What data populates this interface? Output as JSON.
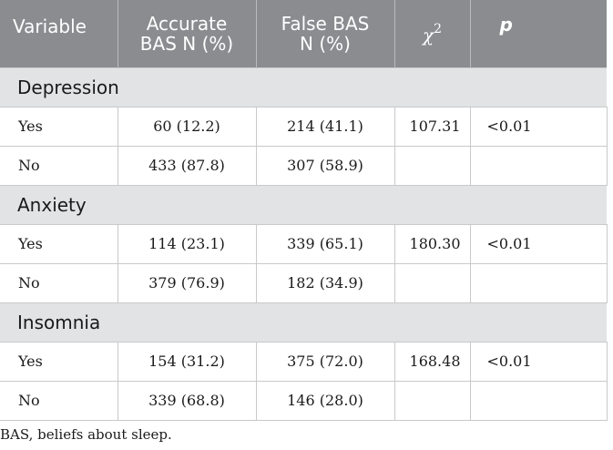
{
  "header": {
    "variable": "Variable",
    "accurate_line1": "Accurate",
    "accurate_line2": "BAS N (%)",
    "false_line1": "False BAS",
    "false_line2": "N (%)",
    "chi_symbol": "χ",
    "chi_exp": "2",
    "p": "p"
  },
  "sections": [
    {
      "name": "Depression",
      "rows": [
        {
          "label": "Yes",
          "accurate": "60 (12.2)",
          "false": "214 (41.1)",
          "chi2": "107.31",
          "p": "<0.01"
        },
        {
          "label": "No",
          "accurate": "433 (87.8)",
          "false": "307 (58.9)",
          "chi2": "",
          "p": ""
        }
      ]
    },
    {
      "name": "Anxiety",
      "rows": [
        {
          "label": "Yes",
          "accurate": "114 (23.1)",
          "false": "339 (65.1)",
          "chi2": "180.30",
          "p": "<0.01"
        },
        {
          "label": "No",
          "accurate": "379 (76.9)",
          "false": "182 (34.9)",
          "chi2": "",
          "p": ""
        }
      ]
    },
    {
      "name": "Insomnia",
      "rows": [
        {
          "label": "Yes",
          "accurate": "154 (31.2)",
          "false": "375 (72.0)",
          "chi2": "168.48",
          "p": "<0.01"
        },
        {
          "label": "No",
          "accurate": "339 (68.8)",
          "false": "146 (28.0)",
          "chi2": "",
          "p": ""
        }
      ]
    }
  ],
  "footnote": "BAS, beliefs about sleep.",
  "colors": {
    "header_bg": "#8a8c8f",
    "section_bg": "#e2e3e4",
    "border": "#c8c9ca"
  }
}
